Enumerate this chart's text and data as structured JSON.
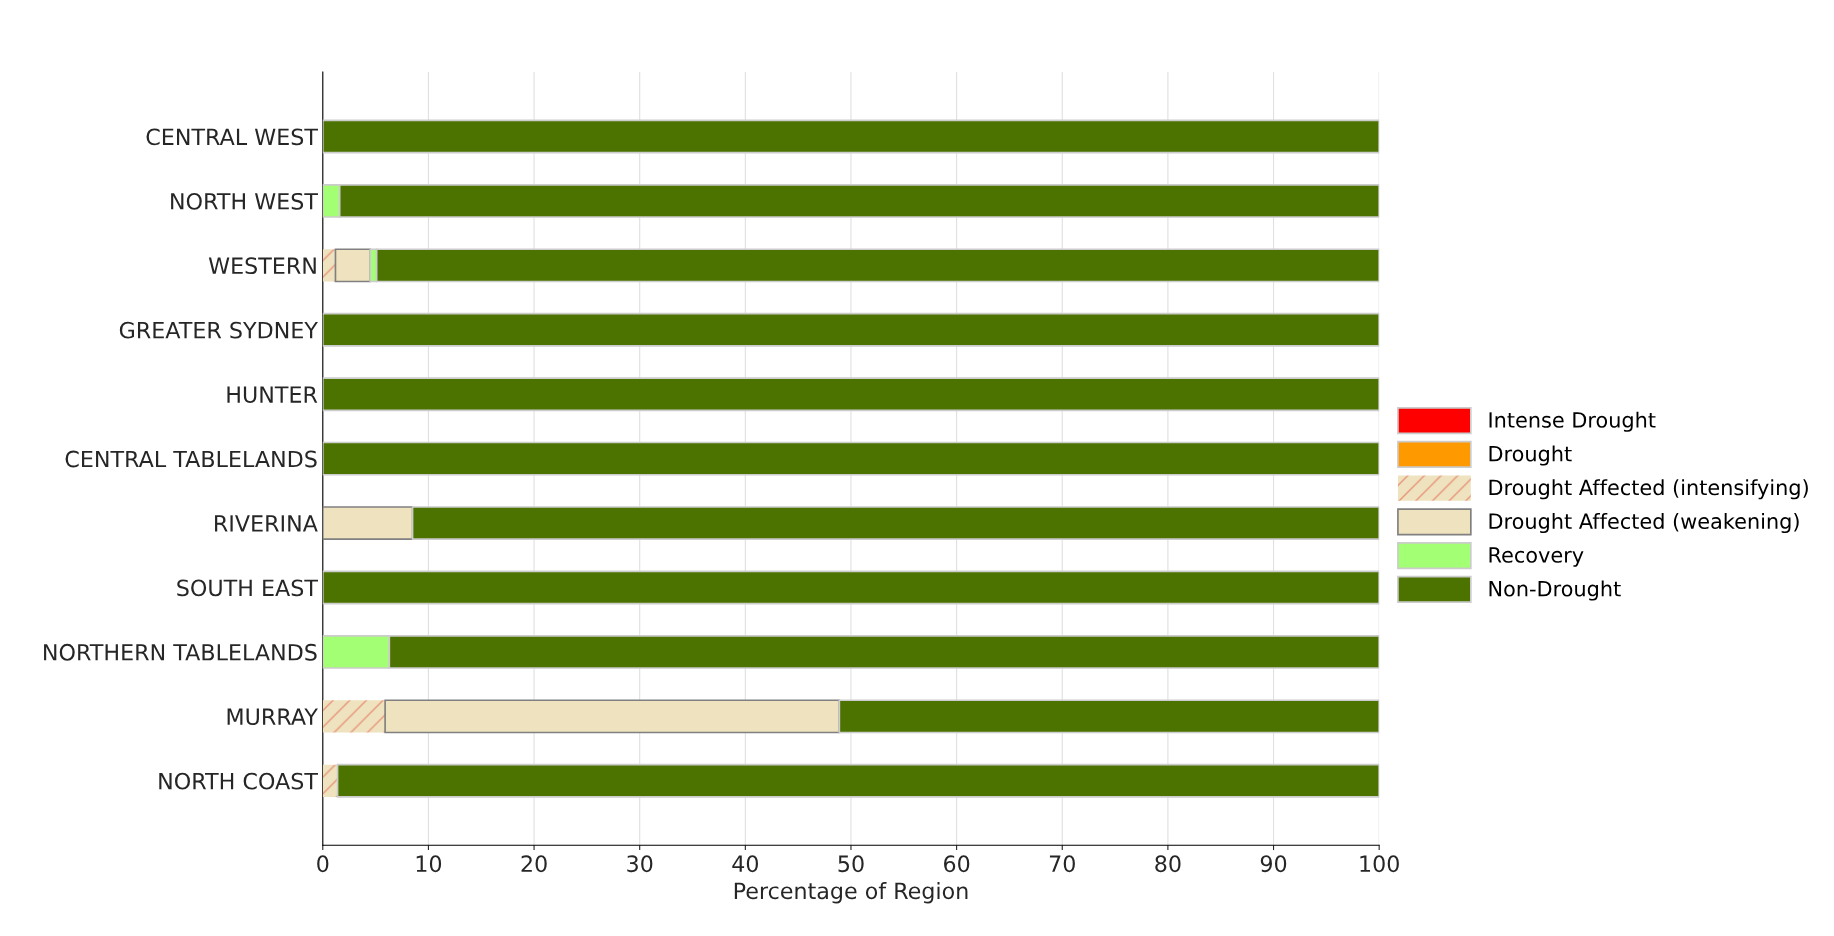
{
  "chart_data": {
    "type": "bar",
    "orientation": "horizontal",
    "stacked": true,
    "xlabel": "Percentage of Region",
    "categories": [
      "CENTRAL WEST",
      "NORTH WEST",
      "WESTERN",
      "GREATER SYDNEY",
      "HUNTER",
      "CENTRAL TABLELANDS",
      "RIVERINA",
      "SOUTH EAST",
      "NORTHERN TABLELANDS",
      "MURRAY",
      "NORTH COAST"
    ],
    "series": [
      {
        "name": "Intense Drought",
        "color": "#ff0000",
        "values": [
          0,
          0,
          0,
          0,
          0,
          0,
          0,
          0,
          0,
          0,
          0
        ]
      },
      {
        "name": "Drought",
        "color": "#ff9900",
        "values": [
          0,
          0,
          0,
          0,
          0,
          0,
          0,
          0,
          0,
          0,
          0
        ]
      },
      {
        "name": "Drought Affected (intensifying)",
        "color": "#eee2bf",
        "values": [
          0,
          0,
          1.2,
          0,
          0,
          0,
          0,
          0,
          0,
          5.9,
          1.4
        ]
      },
      {
        "name": "Drought Affected (weakening)",
        "color": "#eee2bf",
        "values": [
          0,
          0,
          3.3,
          0,
          0,
          0,
          8.5,
          0,
          0,
          43.0,
          0
        ]
      },
      {
        "name": "Recovery",
        "color": "#a3ff73",
        "values": [
          0,
          1.6,
          0.6,
          0,
          0,
          0,
          0,
          0,
          6.3,
          0,
          0
        ]
      },
      {
        "name": "Non-Drought",
        "color": "#4c7300",
        "values": [
          100,
          98.4,
          94.9,
          100,
          100,
          100,
          91.5,
          100,
          93.7,
          51.1,
          98.6
        ]
      }
    ],
    "xlim": [
      0,
      100
    ],
    "xticks": [
      0,
      10,
      20,
      30,
      40,
      50,
      60,
      70,
      80,
      90,
      100
    ],
    "grid": "x",
    "legend": "right"
  }
}
